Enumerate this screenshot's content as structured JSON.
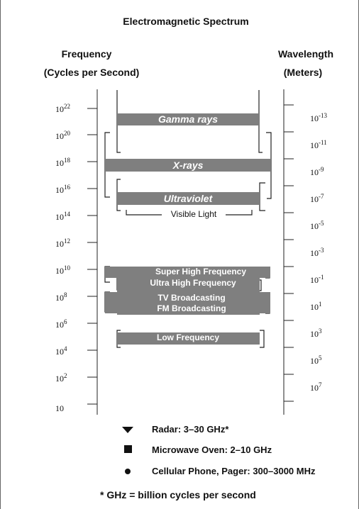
{
  "title": "Electromagnetic Spectrum",
  "frequency_axis": {
    "title": "Frequency",
    "unit": "(Cycles per Second)",
    "ticks": [
      {
        "base": "10",
        "exp": "22"
      },
      {
        "base": "10",
        "exp": "20"
      },
      {
        "base": "10",
        "exp": "18"
      },
      {
        "base": "10",
        "exp": "16"
      },
      {
        "base": "10",
        "exp": "14"
      },
      {
        "base": "10",
        "exp": "12"
      },
      {
        "base": "10",
        "exp": "10"
      },
      {
        "base": "10",
        "exp": "8"
      },
      {
        "base": "10",
        "exp": "6"
      },
      {
        "base": "10",
        "exp": "4"
      },
      {
        "base": "10",
        "exp": "2"
      },
      {
        "base": "10",
        "exp": ""
      }
    ]
  },
  "wavelength_axis": {
    "title": "Wavelength",
    "unit": "(Meters)",
    "ticks": [
      {
        "base": "10",
        "exp": "-13"
      },
      {
        "base": "10",
        "exp": "-11"
      },
      {
        "base": "10",
        "exp": "-9"
      },
      {
        "base": "10",
        "exp": "-7"
      },
      {
        "base": "10",
        "exp": "-5"
      },
      {
        "base": "10",
        "exp": "-3"
      },
      {
        "base": "10",
        "exp": "-1"
      },
      {
        "base": "10",
        "exp": "1"
      },
      {
        "base": "10",
        "exp": "3"
      },
      {
        "base": "10",
        "exp": "5"
      },
      {
        "base": "10",
        "exp": "7"
      }
    ]
  },
  "bands": {
    "gamma": "Gamma rays",
    "xray": "X-rays",
    "uv": "Ultraviolet",
    "visible": "Visible Light",
    "shf": "Super High Frequency",
    "uhf": "Ultra High Frequency",
    "tv": "TV Broadcasting",
    "fm": "FM Broadcasting",
    "lf": "Low Frequency"
  },
  "legend": {
    "radar": "Radar: 3–30 GHz*",
    "microwave": "Microwave Oven: 2–10 GHz",
    "cellular": "Cellular Phone, Pager: 300–3000 MHz"
  },
  "footnote": "* GHz = billion cycles per second",
  "colors": {
    "band": "#7f7f7f",
    "line": "#222222"
  }
}
